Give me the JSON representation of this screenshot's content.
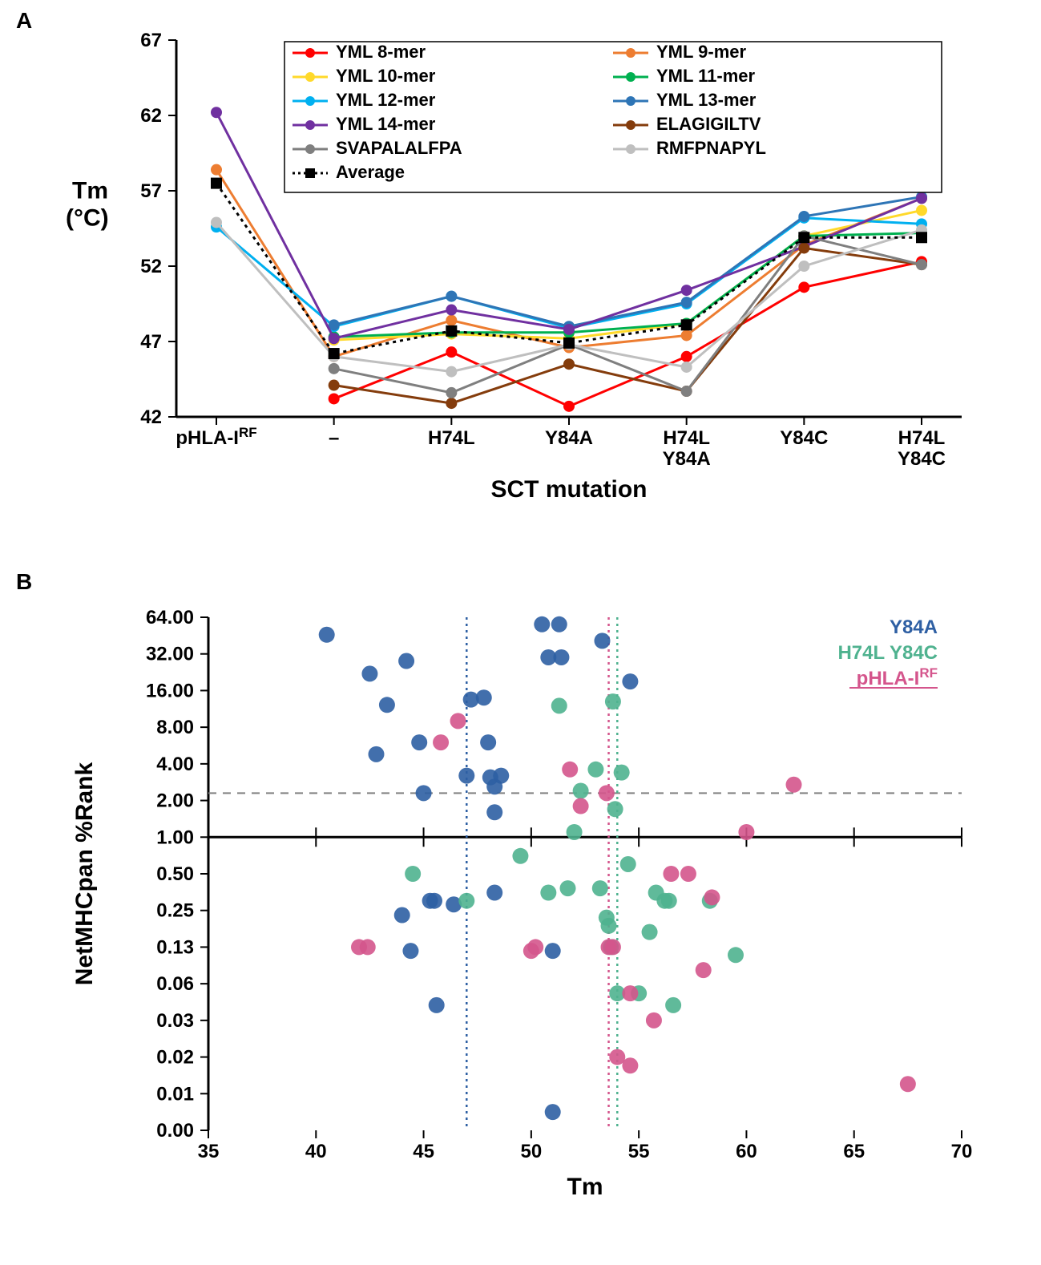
{
  "panelA": {
    "label": "A",
    "type": "line",
    "y_axis": {
      "label": "Tm\n(°C)",
      "min": 42,
      "max": 67,
      "tick_step": 5,
      "ticks": [
        42,
        47,
        52,
        57,
        62,
        67
      ],
      "label_fontsize": 30,
      "tick_fontsize": 24
    },
    "x_axis": {
      "label": "SCT mutation",
      "categories": [
        "pHLA-I^RF",
        "–",
        "H74L",
        "Y84A",
        "H74L\nY84A",
        "Y84C",
        "H74L\nY84C"
      ],
      "label_fontsize": 30,
      "tick_fontsize": 24
    },
    "legend": {
      "fontsize": 22,
      "box_border": "#000000",
      "entries": [
        {
          "label": "YML 8-mer",
          "color": "#ff0000",
          "style": "solid",
          "marker": "circle"
        },
        {
          "label": "YML 9-mer",
          "color": "#ed7d31",
          "style": "solid",
          "marker": "circle"
        },
        {
          "label": "YML 10-mer",
          "color": "#ffd92a",
          "style": "solid",
          "marker": "circle"
        },
        {
          "label": "YML 11-mer",
          "color": "#00b050",
          "style": "solid",
          "marker": "circle"
        },
        {
          "label": "YML 12-mer",
          "color": "#00b0f0",
          "style": "solid",
          "marker": "circle"
        },
        {
          "label": "YML 13-mer",
          "color": "#2e75b6",
          "style": "solid",
          "marker": "circle"
        },
        {
          "label": "YML 14-mer",
          "color": "#7030a0",
          "style": "solid",
          "marker": "circle"
        },
        {
          "label": "ELAGIGILTV",
          "color": "#843c0c",
          "style": "solid",
          "marker": "circle"
        },
        {
          "label": "SVAPALALFPA",
          "color": "#7f7f7f",
          "style": "solid",
          "marker": "circle"
        },
        {
          "label": "RMFPNAPYL",
          "color": "#bfbfbf",
          "style": "solid",
          "marker": "circle"
        },
        {
          "label": "Average",
          "color": "#000000",
          "style": "dotted",
          "marker": "square"
        }
      ]
    },
    "series": [
      {
        "name": "YML 8-mer",
        "color": "#ff0000",
        "style": "solid",
        "marker": "circle",
        "values": [
          null,
          43.2,
          46.3,
          42.7,
          46.0,
          50.6,
          52.3
        ]
      },
      {
        "name": "YML 9-mer",
        "color": "#ed7d31",
        "style": "solid",
        "marker": "circle",
        "values": [
          58.4,
          46.0,
          48.4,
          46.6,
          47.4,
          53.4,
          56.5
        ]
      },
      {
        "name": "YML 10-mer",
        "color": "#ffd92a",
        "style": "solid",
        "marker": "circle",
        "values": [
          null,
          47.1,
          47.5,
          47.2,
          48.2,
          54.0,
          55.7
        ]
      },
      {
        "name": "YML 11-mer",
        "color": "#00b050",
        "style": "solid",
        "marker": "circle",
        "values": [
          null,
          47.3,
          47.6,
          47.6,
          48.2,
          54.0,
          54.2
        ]
      },
      {
        "name": "YML 12-mer",
        "color": "#00b0f0",
        "style": "solid",
        "marker": "circle",
        "values": [
          54.6,
          48.0,
          50.0,
          47.9,
          49.5,
          55.2,
          54.8
        ]
      },
      {
        "name": "YML 13-mer",
        "color": "#2e75b6",
        "style": "solid",
        "marker": "circle",
        "values": [
          null,
          48.1,
          50.0,
          48.0,
          49.6,
          55.3,
          56.6
        ]
      },
      {
        "name": "YML 14-mer",
        "color": "#7030a0",
        "style": "solid",
        "marker": "circle",
        "values": [
          62.2,
          47.2,
          49.1,
          47.8,
          50.4,
          53.3,
          56.5
        ]
      },
      {
        "name": "ELAGIGILTV",
        "color": "#843c0c",
        "style": "solid",
        "marker": "circle",
        "values": [
          null,
          44.1,
          42.9,
          45.5,
          43.7,
          53.2,
          52.1
        ]
      },
      {
        "name": "SVAPALALFPA",
        "color": "#7f7f7f",
        "style": "solid",
        "marker": "circle",
        "values": [
          null,
          45.2,
          43.6,
          46.8,
          43.7,
          54.0,
          52.1
        ]
      },
      {
        "name": "RMFPNAPYL",
        "color": "#bfbfbf",
        "style": "solid",
        "marker": "circle",
        "values": [
          54.9,
          46.0,
          45.0,
          46.8,
          45.3,
          52.0,
          54.4
        ]
      },
      {
        "name": "Average",
        "color": "#000000",
        "style": "dotted",
        "marker": "square",
        "values": [
          57.5,
          46.2,
          47.7,
          46.9,
          48.1,
          53.9,
          53.9
        ]
      }
    ],
    "line_width": 3,
    "marker_size": 7,
    "background_color": "#ffffff",
    "axis_color": "#000000"
  },
  "panelB": {
    "label": "B",
    "type": "scatter",
    "x_axis": {
      "label": "Tm",
      "min": 35,
      "max": 70,
      "tick_step": 5,
      "ticks": [
        35,
        40,
        45,
        50,
        55,
        60,
        65,
        70
      ],
      "label_fontsize": 30,
      "tick_fontsize": 24
    },
    "y_axis": {
      "label": "NetMHCpan %Rank",
      "scale": "log2",
      "ticks": [
        0.0,
        0.01,
        0.02,
        0.03,
        0.06,
        0.13,
        0.25,
        0.5,
        1.0,
        2.0,
        4.0,
        8.0,
        16.0,
        32.0,
        64.0
      ],
      "tick_labels": [
        "0.00",
        "0.01",
        "0.02",
        "0.03",
        "0.06",
        "0.13",
        "0.25",
        "0.50",
        "1.00",
        "2.00",
        "4.00",
        "8.00",
        "16.00",
        "32.00",
        "64.00"
      ],
      "label_fontsize": 30,
      "tick_fontsize": 24
    },
    "legend": {
      "fontsize": 24,
      "entries": [
        {
          "label": "Y84A",
          "color": "#2e5fa3"
        },
        {
          "label": "H74L Y84C",
          "color": "#4fb28f"
        },
        {
          "label": "pHLA-I^RF",
          "color": "#d4558c"
        }
      ]
    },
    "ref_lines": {
      "horizontal": {
        "y": 2.3,
        "color": "#808080",
        "style": "dashed"
      },
      "vertical": [
        {
          "x": 47.0,
          "color": "#2e5fa3",
          "style": "dotted"
        },
        {
          "x": 53.6,
          "color": "#d4558c",
          "style": "dotted"
        },
        {
          "x": 54.0,
          "color": "#4fb28f",
          "style": "dotted"
        }
      ]
    },
    "marker_size": 10,
    "marker_opacity": 0.9,
    "background_color": "#ffffff",
    "axis_color": "#000000",
    "groups": [
      {
        "name": "Y84A",
        "color": "#2e5fa3",
        "points": [
          [
            40.5,
            46.0
          ],
          [
            42.5,
            22.0
          ],
          [
            42.8,
            4.8
          ],
          [
            43.3,
            12.2
          ],
          [
            44.2,
            28.0
          ],
          [
            44.0,
            0.23
          ],
          [
            44.4,
            0.12
          ],
          [
            44.8,
            6.0
          ],
          [
            45.0,
            2.3
          ],
          [
            45.3,
            0.3
          ],
          [
            45.5,
            0.3
          ],
          [
            45.6,
            0.04
          ],
          [
            46.4,
            0.28
          ],
          [
            47.0,
            3.2
          ],
          [
            47.2,
            13.5
          ],
          [
            47.8,
            14.0
          ],
          [
            48.0,
            6.0
          ],
          [
            48.1,
            3.1
          ],
          [
            48.3,
            2.6
          ],
          [
            48.3,
            1.6
          ],
          [
            48.3,
            0.35
          ],
          [
            48.6,
            3.2
          ],
          [
            50.5,
            56.0
          ],
          [
            50.8,
            30.0
          ],
          [
            51.0,
            0.12
          ],
          [
            51.0,
            0.005
          ],
          [
            51.3,
            56.0
          ],
          [
            51.4,
            30.0
          ],
          [
            53.3,
            41.0
          ],
          [
            54.6,
            19.0
          ]
        ]
      },
      {
        "name": "H74L Y84C",
        "color": "#4fb28f",
        "points": [
          [
            44.5,
            0.5
          ],
          [
            47.0,
            0.3
          ],
          [
            49.5,
            0.7
          ],
          [
            50.8,
            0.35
          ],
          [
            51.3,
            12.0
          ],
          [
            51.7,
            0.38
          ],
          [
            52.0,
            1.1
          ],
          [
            52.3,
            2.4
          ],
          [
            53.0,
            3.6
          ],
          [
            53.2,
            0.38
          ],
          [
            53.5,
            0.22
          ],
          [
            53.6,
            0.19
          ],
          [
            53.7,
            0.13
          ],
          [
            53.8,
            13.0
          ],
          [
            53.9,
            1.7
          ],
          [
            54.0,
            0.05
          ],
          [
            54.2,
            3.4
          ],
          [
            54.5,
            0.6
          ],
          [
            55.0,
            0.05
          ],
          [
            55.5,
            0.17
          ],
          [
            55.8,
            0.35
          ],
          [
            56.2,
            0.3
          ],
          [
            56.4,
            0.3
          ],
          [
            56.6,
            0.04
          ],
          [
            58.3,
            0.3
          ],
          [
            59.5,
            0.11
          ]
        ]
      },
      {
        "name": "pHLA-IRF",
        "color": "#d4558c",
        "points": [
          [
            42.0,
            0.13
          ],
          [
            42.4,
            0.13
          ],
          [
            45.8,
            6.0
          ],
          [
            46.6,
            9.0
          ],
          [
            50.0,
            0.12
          ],
          [
            50.2,
            0.13
          ],
          [
            51.8,
            3.6
          ],
          [
            52.3,
            1.8
          ],
          [
            53.5,
            2.3
          ],
          [
            53.6,
            0.13
          ],
          [
            53.8,
            0.13
          ],
          [
            54.0,
            0.02
          ],
          [
            54.6,
            0.017
          ],
          [
            54.6,
            0.05
          ],
          [
            55.7,
            0.03
          ],
          [
            56.5,
            0.5
          ],
          [
            57.3,
            0.5
          ],
          [
            58.0,
            0.08
          ],
          [
            58.4,
            0.32
          ],
          [
            60.0,
            1.1
          ],
          [
            62.2,
            2.7
          ],
          [
            67.5,
            0.012
          ]
        ]
      }
    ]
  }
}
